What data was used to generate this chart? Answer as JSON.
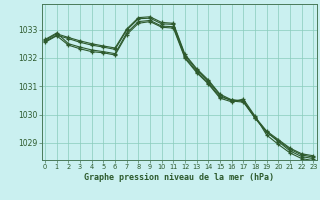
{
  "title": "Graphe pression niveau de la mer (hPa)",
  "bg_color": "#caf0f0",
  "grid_color": "#88ccbb",
  "line_color": "#2d5a2d",
  "x_ticks": [
    0,
    1,
    2,
    3,
    4,
    5,
    6,
    7,
    8,
    9,
    10,
    11,
    12,
    13,
    14,
    15,
    16,
    17,
    18,
    19,
    20,
    21,
    22,
    23
  ],
  "ylim": [
    1028.4,
    1033.9
  ],
  "yticks": [
    1029,
    1030,
    1031,
    1032,
    1033
  ],
  "series1_x": [
    0,
    1,
    2,
    3,
    4,
    5,
    6,
    7,
    8,
    9,
    10,
    11,
    12,
    13,
    14,
    15,
    16,
    17,
    18,
    19,
    20,
    21,
    22,
    23
  ],
  "series1_y": [
    1032.62,
    1032.85,
    1032.72,
    1032.6,
    1032.5,
    1032.42,
    1032.35,
    1033.02,
    1033.42,
    1033.45,
    1033.25,
    1033.22,
    1032.12,
    1031.62,
    1031.22,
    1030.72,
    1030.52,
    1030.48,
    1029.92,
    1029.42,
    1029.12,
    1028.82,
    1028.62,
    1028.55
  ],
  "series2_x": [
    0,
    1,
    2,
    3,
    4,
    5,
    6,
    7,
    8,
    9,
    10,
    11,
    12,
    13,
    14,
    15,
    16,
    17,
    18,
    19,
    20,
    21,
    22,
    23
  ],
  "series2_y": [
    1032.58,
    1032.8,
    1032.68,
    1032.55,
    1032.45,
    1032.38,
    1032.3,
    1032.98,
    1033.38,
    1033.4,
    1033.2,
    1033.18,
    1032.08,
    1031.58,
    1031.18,
    1030.68,
    1030.48,
    1030.44,
    1029.88,
    1029.38,
    1029.08,
    1028.78,
    1028.58,
    1028.5
  ],
  "series3_x": [
    0,
    1,
    2,
    3,
    4,
    5,
    6,
    7,
    8,
    9,
    10,
    11,
    12,
    13,
    14,
    15,
    16,
    17,
    18,
    19,
    20,
    21,
    22,
    23
  ],
  "series3_y": [
    1032.65,
    1032.88,
    1032.5,
    1032.38,
    1032.28,
    1032.22,
    1032.15,
    1032.88,
    1033.28,
    1033.32,
    1033.12,
    1033.1,
    1032.02,
    1031.52,
    1031.12,
    1030.62,
    1030.52,
    1030.48,
    1029.88,
    1029.38,
    1029.05,
    1028.72,
    1028.52,
    1028.45
  ],
  "series4_x": [
    0,
    1,
    2,
    3,
    4,
    5,
    6,
    7,
    8,
    9,
    10,
    11,
    12,
    13,
    14,
    15,
    16,
    17,
    18,
    19,
    20,
    21,
    22,
    23
  ],
  "series4_y": [
    1032.55,
    1032.78,
    1032.45,
    1032.32,
    1032.22,
    1032.18,
    1032.1,
    1032.82,
    1033.22,
    1033.28,
    1033.08,
    1033.05,
    1031.98,
    1031.48,
    1031.08,
    1030.58,
    1030.45,
    1030.55,
    1029.95,
    1029.28,
    1028.95,
    1028.65,
    1028.45,
    1028.38
  ]
}
